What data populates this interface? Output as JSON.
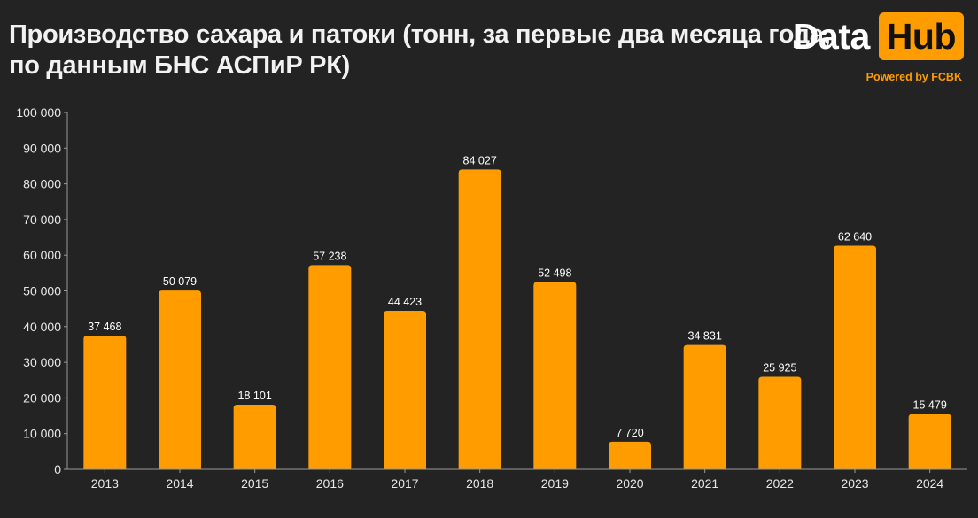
{
  "title": {
    "line1": "Производство сахара и патоки (тонн, за первые два месяца года,",
    "line2": "по данным БНС АСПиР РК)"
  },
  "logo": {
    "data": "Data",
    "hub": "Hub",
    "powered": "Powered by FCBK"
  },
  "colors": {
    "bar": "#ff9c00",
    "background": "#232323",
    "accent": "#ff9c00"
  },
  "chart_data": {
    "type": "bar",
    "title": "Производство сахара и патоки (тонн, за первые два месяца года, по данным БНС АСПиР РК)",
    "categories": [
      "2013",
      "2014",
      "2015",
      "2016",
      "2017",
      "2018",
      "2019",
      "2020",
      "2021",
      "2022",
      "2023",
      "2024"
    ],
    "values": [
      37468,
      50079,
      18101,
      57238,
      44423,
      84027,
      52498,
      7720,
      34831,
      25925,
      62640,
      15479
    ],
    "value_labels": [
      "37 468",
      "50 079",
      "18 101",
      "57 238",
      "44 423",
      "84 027",
      "52 498",
      "7 720",
      "34 831",
      "25 925",
      "62 640",
      "15 479"
    ],
    "ylim": [
      0,
      100000
    ],
    "yticks": [
      0,
      10000,
      20000,
      30000,
      40000,
      50000,
      60000,
      70000,
      80000,
      90000,
      100000
    ],
    "ytick_labels": [
      "0",
      "10 000",
      "20 000",
      "30 000",
      "40 000",
      "50 000",
      "60 000",
      "70 000",
      "80 000",
      "90 000",
      "100 000"
    ],
    "grid": false,
    "legend": "none"
  }
}
